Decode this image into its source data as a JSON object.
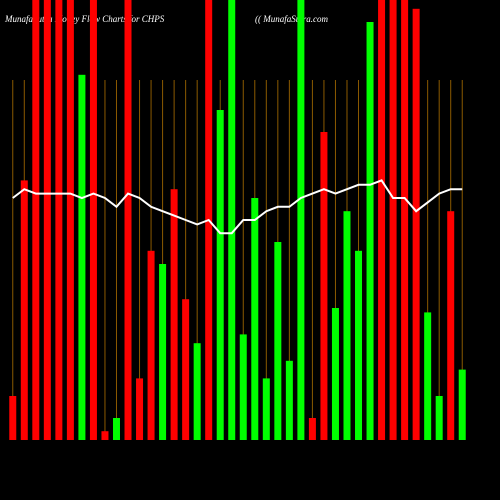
{
  "chart_data": {
    "type": "bar",
    "title": "MunafaSutra Money Flow Charts for CHPS",
    "subtitle": "(( MunafaSutra.com",
    "categories": [
      null,
      null,
      null,
      null,
      null,
      null,
      null,
      null,
      null,
      null,
      null,
      null,
      null,
      null,
      null,
      null,
      null,
      null,
      null,
      null,
      null,
      null,
      null,
      null,
      null,
      null,
      null,
      null,
      null,
      null,
      null,
      null,
      null,
      null,
      null,
      null,
      null,
      null,
      null,
      null
    ],
    "values": [
      10,
      59,
      100,
      100,
      100,
      100,
      83,
      100,
      2,
      5,
      100,
      14,
      43,
      40,
      57,
      32,
      22,
      100,
      75,
      100,
      24,
      55,
      14,
      45,
      18,
      100,
      5,
      70,
      30,
      52,
      43,
      95,
      100,
      100,
      100,
      98,
      29,
      10,
      52,
      16
    ],
    "colors": [
      "#ff0000",
      "#ff0000",
      "#ff0000",
      "#ff0000",
      "#ff0000",
      "#ff0000",
      "#00ff00",
      "#ff0000",
      "#ff0000",
      "#00ff00",
      "#ff0000",
      "#ff0000",
      "#ff0000",
      "#00ff00",
      "#ff0000",
      "#ff0000",
      "#00ff00",
      "#ff0000",
      "#00ff00",
      "#00ff00",
      "#00ff00",
      "#00ff00",
      "#00ff00",
      "#00ff00",
      "#00ff00",
      "#00ff00",
      "#ff0000",
      "#ff0000",
      "#00ff00",
      "#00ff00",
      "#00ff00",
      "#00ff00",
      "#ff0000",
      "#ff0000",
      "#ff0000",
      "#ff0000",
      "#00ff00",
      "#00ff00",
      "#ff0000",
      "#00ff00"
    ],
    "line": {
      "color": "#ffffff",
      "values": [
        55,
        57,
        56,
        56,
        56,
        56,
        55,
        56,
        55,
        53,
        56,
        55,
        53,
        52,
        51,
        50,
        49,
        50,
        47,
        47,
        50,
        50,
        52,
        53,
        53,
        55,
        56,
        57,
        56,
        57,
        58,
        58,
        59,
        55,
        55,
        52,
        54,
        56,
        57,
        57
      ]
    },
    "ylim": [
      0,
      100
    ],
    "grid": true,
    "grid_color": "#8b5a00"
  }
}
